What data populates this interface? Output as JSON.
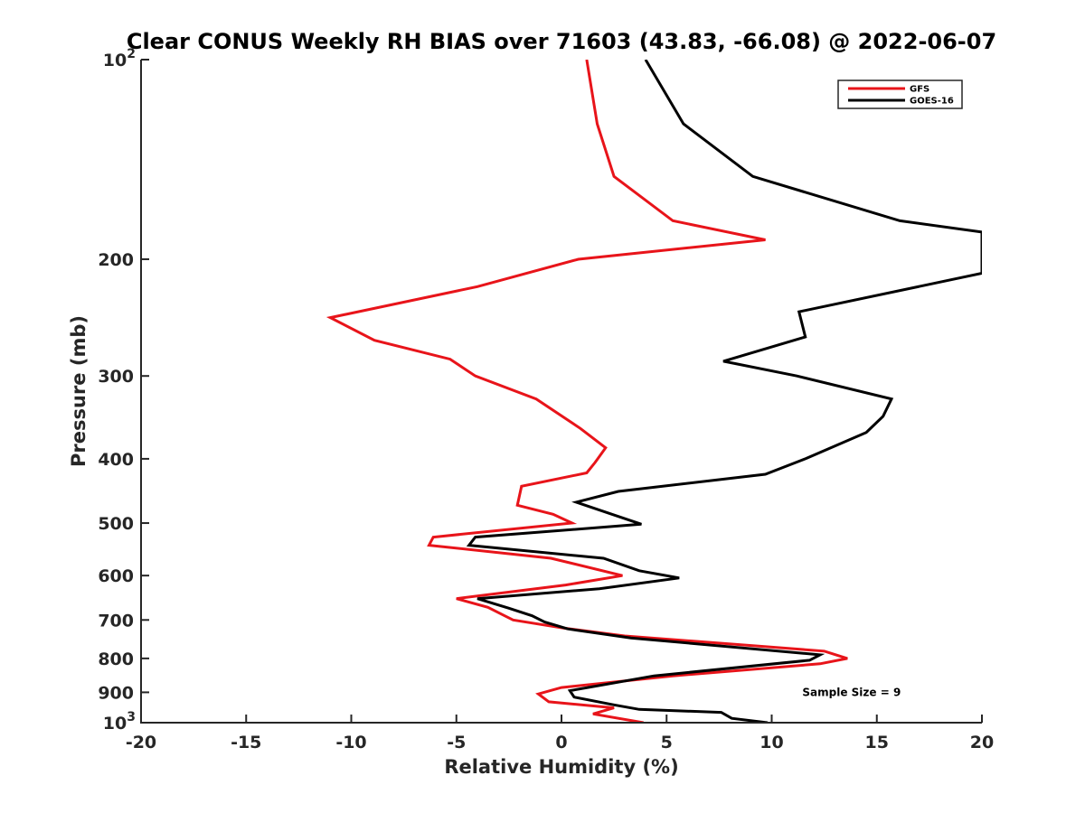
{
  "chart_data": {
    "type": "line",
    "title": "Clear CONUS Weekly RH BIAS over 71603 (43.83, -66.08) @ 2022-06-07",
    "xlabel": "Relative Humidity (%)",
    "ylabel": "Pressure (mb)",
    "xlim": [
      -20,
      20
    ],
    "ylim": [
      100,
      1000
    ],
    "y_scale": "log",
    "y_direction": "reversed",
    "grid": false,
    "legend_position": "top-right",
    "x_ticks": [
      "-20",
      "-15",
      "-10",
      "-5",
      "0",
      "5",
      "10",
      "15",
      "20"
    ],
    "x_tick_values": [
      -20,
      -15,
      -10,
      -5,
      0,
      5,
      10,
      15,
      20
    ],
    "y_ticks": [
      {
        "value": 100,
        "base": "10",
        "exp": "2"
      },
      {
        "value": 200,
        "base": "200",
        "exp": ""
      },
      {
        "value": 300,
        "base": "300",
        "exp": ""
      },
      {
        "value": 400,
        "base": "400",
        "exp": ""
      },
      {
        "value": 500,
        "base": "500",
        "exp": ""
      },
      {
        "value": 600,
        "base": "600",
        "exp": ""
      },
      {
        "value": 700,
        "base": "700",
        "exp": ""
      },
      {
        "value": 800,
        "base": "800",
        "exp": ""
      },
      {
        "value": 900,
        "base": "900",
        "exp": ""
      },
      {
        "value": 1000,
        "base": "10",
        "exp": "3"
      }
    ],
    "series": [
      {
        "name": "GFS",
        "color": "#e8141a",
        "points": [
          {
            "x": 1.2,
            "y": 100
          },
          {
            "x": 1.7,
            "y": 125
          },
          {
            "x": 2.5,
            "y": 150
          },
          {
            "x": 5.3,
            "y": 175
          },
          {
            "x": 9.7,
            "y": 187
          },
          {
            "x": 0.8,
            "y": 200
          },
          {
            "x": -4.0,
            "y": 220
          },
          {
            "x": -11.0,
            "y": 245
          },
          {
            "x": -8.9,
            "y": 265
          },
          {
            "x": -5.3,
            "y": 283
          },
          {
            "x": -4.1,
            "y": 300
          },
          {
            "x": -1.2,
            "y": 325
          },
          {
            "x": 0.9,
            "y": 360
          },
          {
            "x": 2.1,
            "y": 385
          },
          {
            "x": 1.6,
            "y": 405
          },
          {
            "x": 1.2,
            "y": 420
          },
          {
            "x": -1.9,
            "y": 440
          },
          {
            "x": -2.1,
            "y": 470
          },
          {
            "x": -0.4,
            "y": 485
          },
          {
            "x": 0.5,
            "y": 500
          },
          {
            "x": -6.1,
            "y": 525
          },
          {
            "x": -6.3,
            "y": 540
          },
          {
            "x": -0.5,
            "y": 565
          },
          {
            "x": 2.9,
            "y": 600
          },
          {
            "x": 0.2,
            "y": 620
          },
          {
            "x": -5.0,
            "y": 650
          },
          {
            "x": -3.5,
            "y": 670
          },
          {
            "x": -2.7,
            "y": 690
          },
          {
            "x": -2.3,
            "y": 700
          },
          {
            "x": 0.1,
            "y": 720
          },
          {
            "x": 3.0,
            "y": 740
          },
          {
            "x": 12.5,
            "y": 780
          },
          {
            "x": 13.6,
            "y": 800
          },
          {
            "x": 12.3,
            "y": 815
          },
          {
            "x": 5.3,
            "y": 850
          },
          {
            "x": 0.0,
            "y": 885
          },
          {
            "x": -1.1,
            "y": 905
          },
          {
            "x": -0.6,
            "y": 930
          },
          {
            "x": 2.5,
            "y": 950
          },
          {
            "x": 1.5,
            "y": 970
          },
          {
            "x": 3.9,
            "y": 1000
          }
        ]
      },
      {
        "name": "GOES-16",
        "color": "#000000",
        "points": [
          {
            "x": 4.0,
            "y": 100
          },
          {
            "x": 5.8,
            "y": 125
          },
          {
            "x": 9.1,
            "y": 150
          },
          {
            "x": 16.1,
            "y": 175
          },
          {
            "x": 20.0,
            "y": 182
          },
          {
            "x": 20.0,
            "y": 210
          },
          {
            "x": 11.3,
            "y": 240
          },
          {
            "x": 11.6,
            "y": 262
          },
          {
            "x": 7.7,
            "y": 285
          },
          {
            "x": 11.2,
            "y": 300
          },
          {
            "x": 15.7,
            "y": 325
          },
          {
            "x": 15.3,
            "y": 345
          },
          {
            "x": 14.5,
            "y": 365
          },
          {
            "x": 11.6,
            "y": 400
          },
          {
            "x": 9.7,
            "y": 422
          },
          {
            "x": 2.7,
            "y": 448
          },
          {
            "x": 0.7,
            "y": 465
          },
          {
            "x": 2.4,
            "y": 485
          },
          {
            "x": 3.8,
            "y": 502
          },
          {
            "x": -4.1,
            "y": 525
          },
          {
            "x": -4.4,
            "y": 540
          },
          {
            "x": 2.0,
            "y": 565
          },
          {
            "x": 3.7,
            "y": 590
          },
          {
            "x": 5.6,
            "y": 605
          },
          {
            "x": 1.8,
            "y": 628
          },
          {
            "x": -4.0,
            "y": 650
          },
          {
            "x": -2.5,
            "y": 672
          },
          {
            "x": -1.4,
            "y": 690
          },
          {
            "x": -0.8,
            "y": 705
          },
          {
            "x": 0.3,
            "y": 722
          },
          {
            "x": 3.3,
            "y": 745
          },
          {
            "x": 12.3,
            "y": 790
          },
          {
            "x": 11.8,
            "y": 805
          },
          {
            "x": 4.4,
            "y": 850
          },
          {
            "x": 0.4,
            "y": 895
          },
          {
            "x": 0.6,
            "y": 915
          },
          {
            "x": 2.5,
            "y": 940
          },
          {
            "x": 3.7,
            "y": 955
          },
          {
            "x": 7.6,
            "y": 965
          },
          {
            "x": 8.1,
            "y": 985
          },
          {
            "x": 9.8,
            "y": 1000
          }
        ]
      }
    ],
    "annotations": [
      {
        "text": "Sample Size = 9",
        "x": 13.8,
        "y": 900
      }
    ]
  }
}
